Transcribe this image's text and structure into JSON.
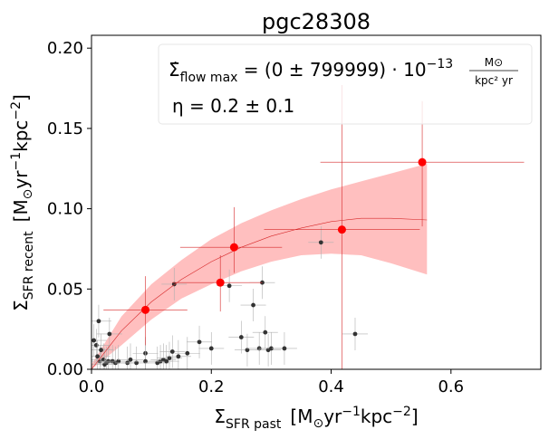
{
  "chart_data": {
    "type": "scatter",
    "title": "pgc28308",
    "xlabel": {
      "base": "Σ",
      "sub": "SFR past",
      "unit_pre": "[M",
      "unit_sun": "⊙",
      "unit_yr": "yr",
      "exp1": "−1",
      "unit_kpc": "kpc",
      "exp2": "−2",
      "unit_close": "]"
    },
    "ylabel": {
      "base": "Σ",
      "sub": "SFR recent",
      "unit_pre": "[M",
      "unit_sun": "⊙",
      "unit_yr": "yr",
      "exp1": "−1",
      "unit_kpc": "kpc",
      "exp2": "−2",
      "unit_close": "]"
    },
    "xlim": [
      0.0,
      0.75
    ],
    "ylim": [
      0.0,
      0.208
    ],
    "x_ticks": [
      0.0,
      0.2,
      0.4,
      0.6
    ],
    "x_tick_labels": [
      "0.0",
      "0.2",
      "0.4",
      "0.6"
    ],
    "y_ticks": [
      0.0,
      0.05,
      0.1,
      0.15,
      0.2
    ],
    "y_tick_labels": [
      "0.00",
      "0.05",
      "0.10",
      "0.15",
      "0.20"
    ],
    "legend": {
      "position": "top-right",
      "line1": {
        "sym": "Σ̇",
        "sub": "flow max",
        "eq": " = (0 ± 799999) · 10",
        "exp": "−13",
        "frac_num": "M⊙",
        "frac_den": "kpc² yr"
      },
      "line2": {
        "text": "η = 0.2 ± 0.1"
      }
    },
    "colors": {
      "binned": "#ff0000",
      "fit": "#d62728",
      "band": "#ffbfbf",
      "points": "#333333",
      "errorbars": "#b0b0b0"
    },
    "binned_points": [
      {
        "x": 0.09,
        "y": 0.037,
        "xerr": [
          0.07,
          0.07
        ],
        "yerr": [
          0.022,
          0.021
        ]
      },
      {
        "x": 0.215,
        "y": 0.054,
        "xerr": [
          0.08,
          0.07
        ],
        "yerr": [
          0.018,
          0.017
        ]
      },
      {
        "x": 0.238,
        "y": 0.076,
        "xerr": [
          0.09,
          0.08
        ],
        "yerr": [
          0.016,
          0.025
        ]
      },
      {
        "x": 0.418,
        "y": 0.087,
        "xerr": [
          0.13,
          0.13
        ],
        "yerr": [
          0.087,
          0.09
        ]
      },
      {
        "x": 0.552,
        "y": 0.129,
        "xerr": [
          0.17,
          0.17
        ],
        "yerr": [
          0.04,
          0.038
        ]
      }
    ],
    "fit_curve": {
      "x": [
        0.0,
        0.05,
        0.1,
        0.15,
        0.2,
        0.25,
        0.3,
        0.35,
        0.4,
        0.45,
        0.5,
        0.56
      ],
      "y": [
        0.0,
        0.024,
        0.042,
        0.056,
        0.067,
        0.076,
        0.083,
        0.088,
        0.092,
        0.094,
        0.094,
        0.093
      ]
    },
    "fit_band": {
      "x": [
        0.0,
        0.05,
        0.1,
        0.15,
        0.2,
        0.25,
        0.3,
        0.35,
        0.4,
        0.45,
        0.5,
        0.56
      ],
      "upper": [
        0.003,
        0.033,
        0.053,
        0.068,
        0.081,
        0.091,
        0.099,
        0.106,
        0.112,
        0.117,
        0.122,
        0.128
      ],
      "lower": [
        0.0,
        0.015,
        0.031,
        0.044,
        0.053,
        0.061,
        0.067,
        0.071,
        0.072,
        0.071,
        0.066,
        0.059
      ]
    },
    "scatter_points": [
      {
        "x": 0.004,
        "y": 0.018
      },
      {
        "x": 0.008,
        "y": 0.015
      },
      {
        "x": 0.01,
        "y": 0.008
      },
      {
        "x": 0.012,
        "y": 0.03
      },
      {
        "x": 0.014,
        "y": 0.005
      },
      {
        "x": 0.016,
        "y": 0.012
      },
      {
        "x": 0.02,
        "y": 0.006
      },
      {
        "x": 0.022,
        "y": 0.003
      },
      {
        "x": 0.025,
        "y": 0.004
      },
      {
        "x": 0.028,
        "y": 0.005
      },
      {
        "x": 0.03,
        "y": 0.022
      },
      {
        "x": 0.035,
        "y": 0.005
      },
      {
        "x": 0.04,
        "y": 0.004
      },
      {
        "x": 0.045,
        "y": 0.005
      },
      {
        "x": 0.06,
        "y": 0.004
      },
      {
        "x": 0.065,
        "y": 0.006
      },
      {
        "x": 0.075,
        "y": 0.004
      },
      {
        "x": 0.09,
        "y": 0.01
      },
      {
        "x": 0.09,
        "y": 0.005
      },
      {
        "x": 0.11,
        "y": 0.004
      },
      {
        "x": 0.115,
        "y": 0.005
      },
      {
        "x": 0.12,
        "y": 0.006
      },
      {
        "x": 0.125,
        "y": 0.005
      },
      {
        "x": 0.13,
        "y": 0.007
      },
      {
        "x": 0.135,
        "y": 0.011
      },
      {
        "x": 0.138,
        "y": 0.053
      },
      {
        "x": 0.145,
        "y": 0.008
      },
      {
        "x": 0.16,
        "y": 0.01
      },
      {
        "x": 0.18,
        "y": 0.017
      },
      {
        "x": 0.2,
        "y": 0.013
      },
      {
        "x": 0.23,
        "y": 0.052
      },
      {
        "x": 0.25,
        "y": 0.02
      },
      {
        "x": 0.26,
        "y": 0.012
      },
      {
        "x": 0.27,
        "y": 0.04
      },
      {
        "x": 0.285,
        "y": 0.054
      },
      {
        "x": 0.28,
        "y": 0.013
      },
      {
        "x": 0.29,
        "y": 0.023
      },
      {
        "x": 0.295,
        "y": 0.012
      },
      {
        "x": 0.3,
        "y": 0.013
      },
      {
        "x": 0.322,
        "y": 0.013
      },
      {
        "x": 0.383,
        "y": 0.079
      },
      {
        "x": 0.44,
        "y": 0.022
      }
    ]
  }
}
